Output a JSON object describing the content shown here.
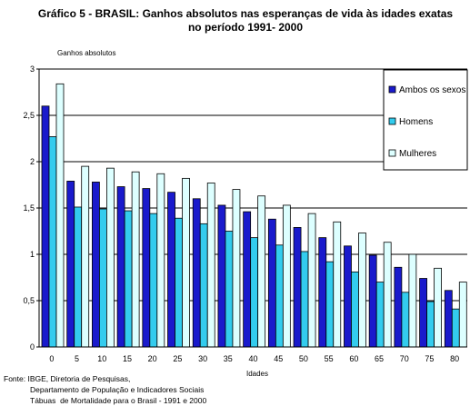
{
  "title_line1": "Gráfico 5 - BRASIL: Ganhos absolutos nas esperanças de vida às idades exatas",
  "title_line2": "no período 1991- 2000",
  "source_lines": [
    "Fonte: IBGE, Diretoria de Pesquisas,",
    "Departamento de População e Indicadores Sociais",
    "Tábuas  de Mortalidade para o Brasil - 1991 e 2000"
  ],
  "chart_data": {
    "type": "bar",
    "ylabel": "Ganhos absolutos",
    "xlabel": "Idades",
    "categories": [
      "0",
      "5",
      "10",
      "15",
      "20",
      "25",
      "30",
      "35",
      "40",
      "45",
      "50",
      "55",
      "60",
      "65",
      "70",
      "75",
      "80"
    ],
    "ylim": [
      0,
      3
    ],
    "yticks": [
      "0",
      "0,5",
      "1",
      "1,5",
      "2",
      "2,5",
      "3"
    ],
    "grid": true,
    "legend_position": "right",
    "series": [
      {
        "name": "Ambos os sexos",
        "color": "#1a1acc",
        "values": [
          2.6,
          1.79,
          1.78,
          1.73,
          1.71,
          1.67,
          1.6,
          1.53,
          1.46,
          1.38,
          1.29,
          1.18,
          1.09,
          0.99,
          0.86,
          0.74,
          0.61
        ]
      },
      {
        "name": "Homens",
        "color": "#33ccee",
        "values": [
          2.27,
          1.51,
          1.49,
          1.47,
          1.44,
          1.39,
          1.33,
          1.25,
          1.18,
          1.1,
          1.03,
          0.92,
          0.81,
          0.7,
          0.59,
          0.49,
          0.41
        ]
      },
      {
        "name": "Mulheres",
        "color": "#ddffff",
        "values": [
          2.84,
          1.95,
          1.93,
          1.89,
          1.87,
          1.82,
          1.77,
          1.7,
          1.63,
          1.53,
          1.44,
          1.35,
          1.23,
          1.13,
          1.0,
          0.85,
          0.7
        ]
      }
    ]
  }
}
